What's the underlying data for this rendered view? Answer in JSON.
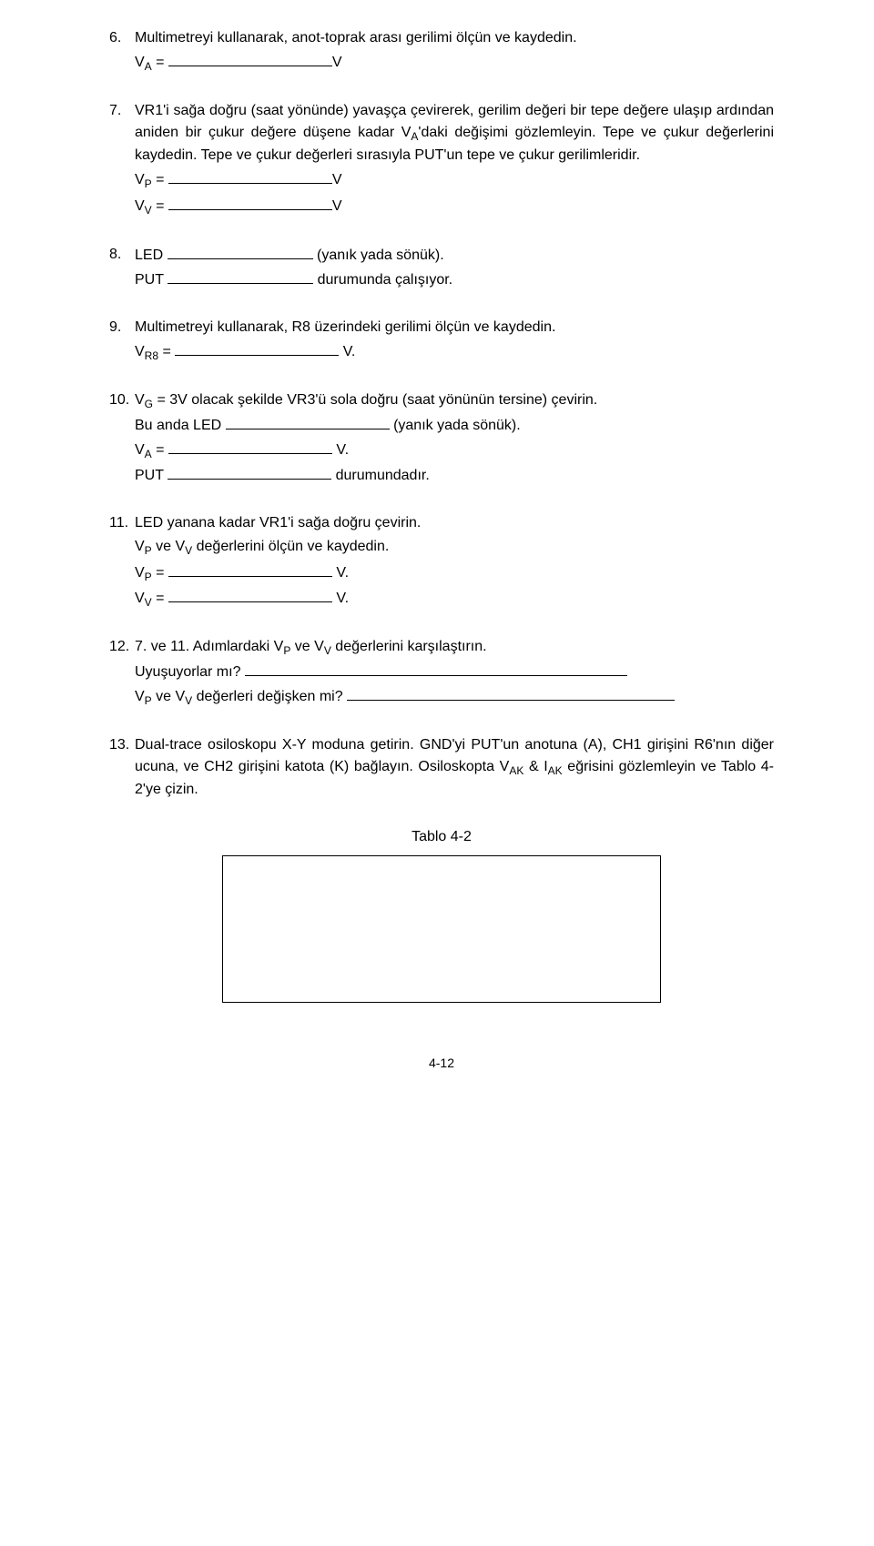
{
  "items": {
    "i6": {
      "num": "6.",
      "text": "Multimetreyi kullanarak, anot-toprak arası gerilimi ölçün ve kaydedin.",
      "va_label": "V",
      "va_sub": "A",
      "va_eq": " = ",
      "va_unit": "V"
    },
    "i7": {
      "num": "7.",
      "text_a": "VR1'i sağa doğru (saat yönünde) yavaşça çevirerek, gerilim değeri bir tepe değere ulaşıp ardından aniden bir çukur değere düşene kadar V",
      "text_a_sub": "A",
      "text_b": "'daki değişimi gözlemleyin. Tepe ve çukur değerlerini kaydedin. Tepe ve çukur değerleri sırasıyla PUT'un tepe ve çukur gerilimleridir.",
      "vp_label": "V",
      "vp_sub": "P",
      "vp_eq": " = ",
      "vp_unit": "V",
      "vv_label": "V",
      "vv_sub": "V",
      "vv_eq": " = ",
      "vv_unit": "V"
    },
    "i8": {
      "num": "8.",
      "led": "LED ",
      "led_suffix": " (yanık yada sönük).",
      "put": "PUT ",
      "put_suffix": " durumunda çalışıyor."
    },
    "i9": {
      "num": "9.",
      "text": "Multimetreyi kullanarak, R8 üzerindeki gerilimi ölçün ve kaydedin.",
      "vr8_label": "V",
      "vr8_sub": "R8",
      "vr8_eq": " = ",
      "vr8_unit": " V."
    },
    "i10": {
      "num": "10.",
      "l1a": "V",
      "l1a_sub": "G",
      "l1b": " = 3V olacak şekilde VR3'ü sola doğru (saat yönünün tersine) çevirin.",
      "l2a": "Bu anda LED ",
      "l2b": " (yanık yada sönük).",
      "va_label": "V",
      "va_sub": "A",
      "va_eq": " = ",
      "va_unit": " V.",
      "put": "PUT ",
      "put_suffix": " durumundadır."
    },
    "i11": {
      "num": "11.",
      "l1": "LED yanana kadar VR1'i sağa doğru çevirin.",
      "l2a": "V",
      "l2a_sub1": "P",
      "l2b": " ve V",
      "l2b_sub": "V",
      "l2c": " değerlerini ölçün ve kaydedin.",
      "vp_label": "V",
      "vp_sub": "P",
      "vp_eq": " = ",
      "vp_unit": " V.",
      "vv_label": "V",
      "vv_sub": "V",
      "vv_eq": " = ",
      "vv_unit": " V."
    },
    "i12": {
      "num": "12.",
      "l1a": "7. ve 11. Adımlardaki V",
      "l1a_s1": "P",
      "l1b": " ve V",
      "l1b_s1": "V",
      "l1c": " değerlerini karşılaştırın.",
      "l2": "Uyuşuyorlar mı? ",
      "l3a": "V",
      "l3a_s": "P",
      "l3b": " ve V",
      "l3b_s": "V",
      "l3c": " değerleri değişken mi? "
    },
    "i13": {
      "num": "13.",
      "text_a": "Dual-trace osiloskopu X-Y moduna getirin. GND'yi PUT'un anotuna (A), CH1 girişini R6'nın diğer ucuna, ve CH2 girişini katota (K) bağlayın. Osiloskopta V",
      "text_a_sub": "AK",
      "text_b": " & I",
      "text_b_sub": "AK",
      "text_c": " eğrisini gözlemleyin ve Tablo 4-2'ye çizin."
    }
  },
  "table_caption": "Tablo 4-2",
  "page_number": "4-12"
}
